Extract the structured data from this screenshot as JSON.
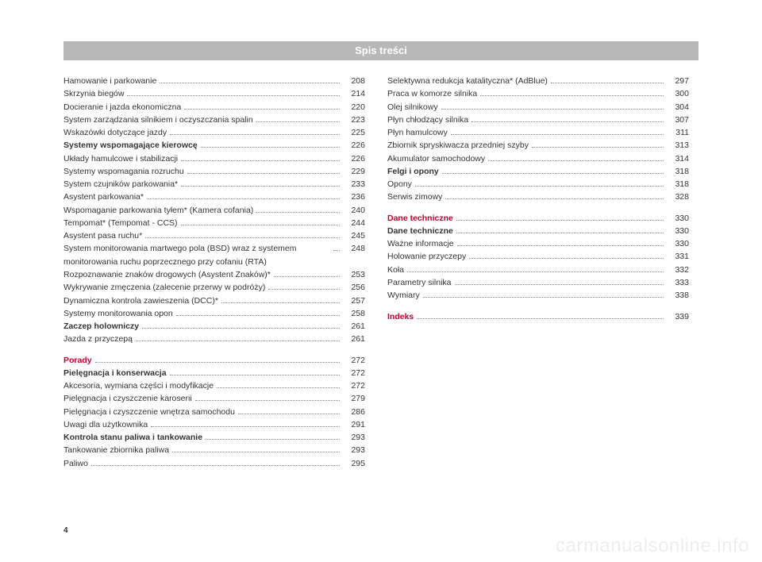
{
  "header": {
    "title": "Spis treści"
  },
  "page_number": "4",
  "watermark": "carmanualsonline.info",
  "col1": [
    {
      "label": "Hamowanie i parkowanie",
      "page": "208"
    },
    {
      "label": "Skrzynia biegów",
      "page": "214"
    },
    {
      "label": "Docieranie i jazda ekonomiczna",
      "page": "220"
    },
    {
      "label": "System zarządzania silnikiem i oczyszczania spalin",
      "page": "223"
    },
    {
      "label": "Wskazówki dotyczące jazdy",
      "page": "225"
    },
    {
      "label": "Systemy wspomagające kierowcę",
      "page": "226",
      "bold": true
    },
    {
      "label": "Układy hamulcowe i stabilizacji",
      "page": "226"
    },
    {
      "label": "Systemy wspomagania rozruchu",
      "page": "229"
    },
    {
      "label": "System czujników parkowania*",
      "page": "233"
    },
    {
      "label": "Asystent parkowania*",
      "page": "236"
    },
    {
      "label": "Wspomaganie parkowania tyłem* (Kamera cofania)",
      "page": "240"
    },
    {
      "label": "Tempomat* (Tempomat - CCS)",
      "page": "244"
    },
    {
      "label": "Asystent pasa ruchu*",
      "page": "245"
    },
    {
      "label": "System monitorowania martwego pola (BSD) wraz z systemem monitorowania ruchu poprzecznego przy cofaniu (RTA)",
      "page": "248"
    },
    {
      "label": "Rozpoznawanie znaków drogowych (Asystent Znaków)*",
      "page": "253"
    },
    {
      "label": "Wykrywanie zmęczenia (zalecenie przerwy w podróży)",
      "page": "256"
    },
    {
      "label": "Dynamiczna kontrola zawieszenia (DCC)*",
      "page": "257"
    },
    {
      "label": "Systemy monitorowania opon",
      "page": "258"
    },
    {
      "label": "Zaczep holowniczy",
      "page": "261",
      "bold": true
    },
    {
      "label": "Jazda z przyczepą",
      "page": "261"
    },
    {
      "spacer": true
    },
    {
      "label": "Porady",
      "page": "272",
      "section": true
    },
    {
      "label": "Pielęgnacja i konserwacja",
      "page": "272",
      "bold": true
    },
    {
      "label": "Akcesoria, wymiana części i modyfikacje",
      "page": "272"
    },
    {
      "label": "Pielęgnacja i czyszczenie karoserii",
      "page": "279"
    },
    {
      "label": "Pielęgnacja i czyszczenie wnętrza samochodu",
      "page": "286"
    },
    {
      "label": "Uwagi dla użytkownika",
      "page": "291"
    },
    {
      "label": "Kontrola stanu paliwa i tankowanie",
      "page": "293",
      "bold": true
    },
    {
      "label": "Tankowanie zbiornika paliwa",
      "page": "293"
    },
    {
      "label": "Paliwo",
      "page": "295"
    }
  ],
  "col2": [
    {
      "label": "Selektywna redukcja katalityczna* (AdBlue)",
      "page": "297"
    },
    {
      "label": "Praca w komorze silnika",
      "page": "300"
    },
    {
      "label": "Olej silnikowy",
      "page": "304"
    },
    {
      "label": "Płyn chłodzący silnika",
      "page": "307"
    },
    {
      "label": "Płyn hamulcowy",
      "page": "311"
    },
    {
      "label": "Zbiornik spryskiwacza przedniej szyby",
      "page": "313"
    },
    {
      "label": "Akumulator samochodowy",
      "page": "314"
    },
    {
      "label": "Felgi i opony",
      "page": "318",
      "bold": true
    },
    {
      "label": "Opony",
      "page": "318"
    },
    {
      "label": "Serwis zimowy",
      "page": "328"
    },
    {
      "spacer": true
    },
    {
      "label": "Dane techniczne",
      "page": "330",
      "section": true
    },
    {
      "label": "Dane techniczne",
      "page": "330",
      "bold": true
    },
    {
      "label": "Ważne informacje",
      "page": "330"
    },
    {
      "label": "Holowanie przyczepy",
      "page": "331"
    },
    {
      "label": "Koła",
      "page": "332"
    },
    {
      "label": "Parametry silnika",
      "page": "333"
    },
    {
      "label": "Wymiary",
      "page": "338"
    },
    {
      "spacer": true
    },
    {
      "label": "Indeks",
      "page": "339",
      "section": true
    }
  ]
}
